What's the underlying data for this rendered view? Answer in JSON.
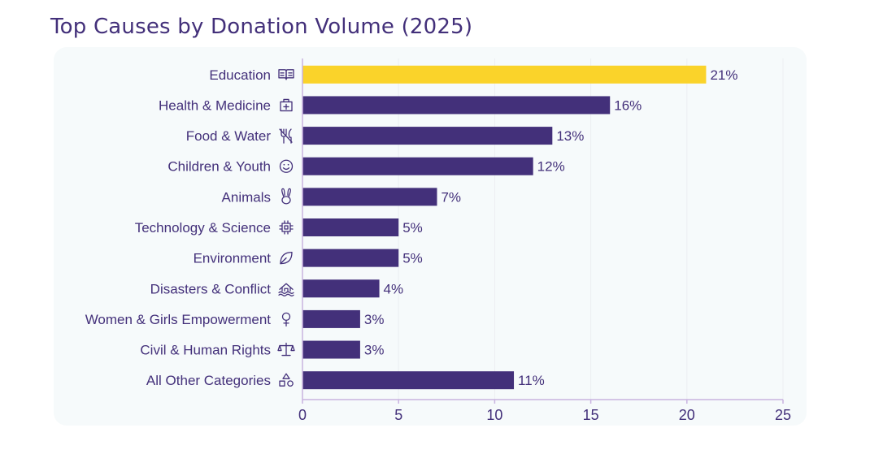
{
  "chart_data": {
    "type": "bar",
    "orientation": "horizontal",
    "title": "Top Causes by Donation Volume (2025)",
    "xlabel": "",
    "ylabel": "",
    "xlim": [
      0,
      25
    ],
    "xticks": [
      0,
      5,
      10,
      15,
      20,
      25
    ],
    "categories": [
      "Education",
      "Health & Medicine",
      "Food & Water",
      "Children & Youth",
      "Animals",
      "Technology & Science",
      "Environment",
      "Disasters & Conflict",
      "Women & Girls Empowerment",
      "Civil & Human Rights",
      "All Other Categories"
    ],
    "icons": [
      "open-book-icon",
      "first-aid-kit-icon",
      "fork-knife-icon",
      "smiley-face-icon",
      "rabbit-icon",
      "microchip-icon",
      "leaf-icon",
      "flooded-house-icon",
      "female-symbol-icon",
      "scales-icon",
      "shapes-icon"
    ],
    "values": [
      21,
      16,
      13,
      12,
      7,
      5,
      5,
      4,
      3,
      3,
      11
    ],
    "value_labels": [
      "21%",
      "16%",
      "13%",
      "12%",
      "7%",
      "5%",
      "5%",
      "4%",
      "3%",
      "3%",
      "11%"
    ],
    "highlight_index": 0,
    "colors": {
      "bar": "#43307a",
      "highlight": "#fad32a",
      "text": "#43307a",
      "axis": "#c9b3e0",
      "grid": "#eceef2",
      "panel": "#f6fafb"
    }
  }
}
